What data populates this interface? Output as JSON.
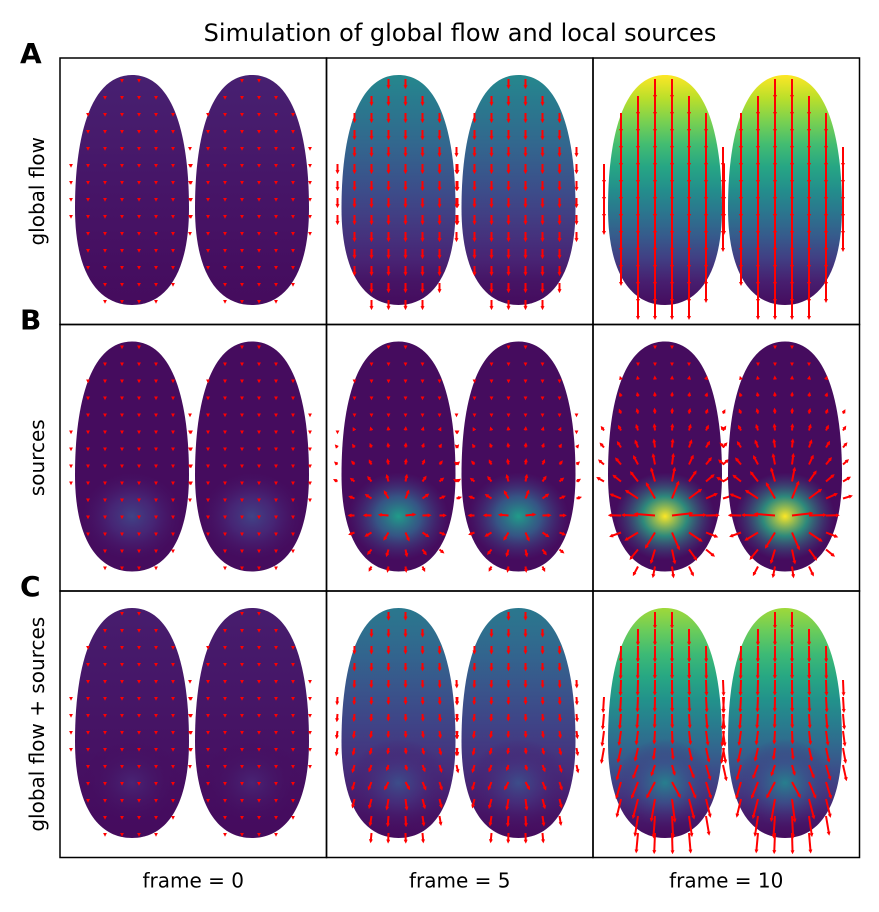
{
  "chart_data": {
    "type": "heatmap",
    "title": "Simulation of global flow and local sources",
    "colormap": "viridis",
    "value_range": [
      0,
      1
    ],
    "arrow_color": "#ff0000",
    "background_color": "#3d0553",
    "embryos_per_panel": 2,
    "rows": [
      {
        "letter": "A",
        "label": "global flow",
        "source": 0,
        "flow": 1
      },
      {
        "letter": "B",
        "label": "sources",
        "source": 1,
        "flow": 0
      },
      {
        "letter": "C",
        "label": "global flow + sources",
        "source": 0.4,
        "flow": 0.85
      }
    ],
    "columns": [
      {
        "label": "frame = 0",
        "frame": 0,
        "intensity": 0.06
      },
      {
        "label": "frame = 5",
        "frame": 5,
        "intensity": 0.45
      },
      {
        "label": "frame = 10",
        "frame": 10,
        "intensity": 1.0
      }
    ]
  }
}
